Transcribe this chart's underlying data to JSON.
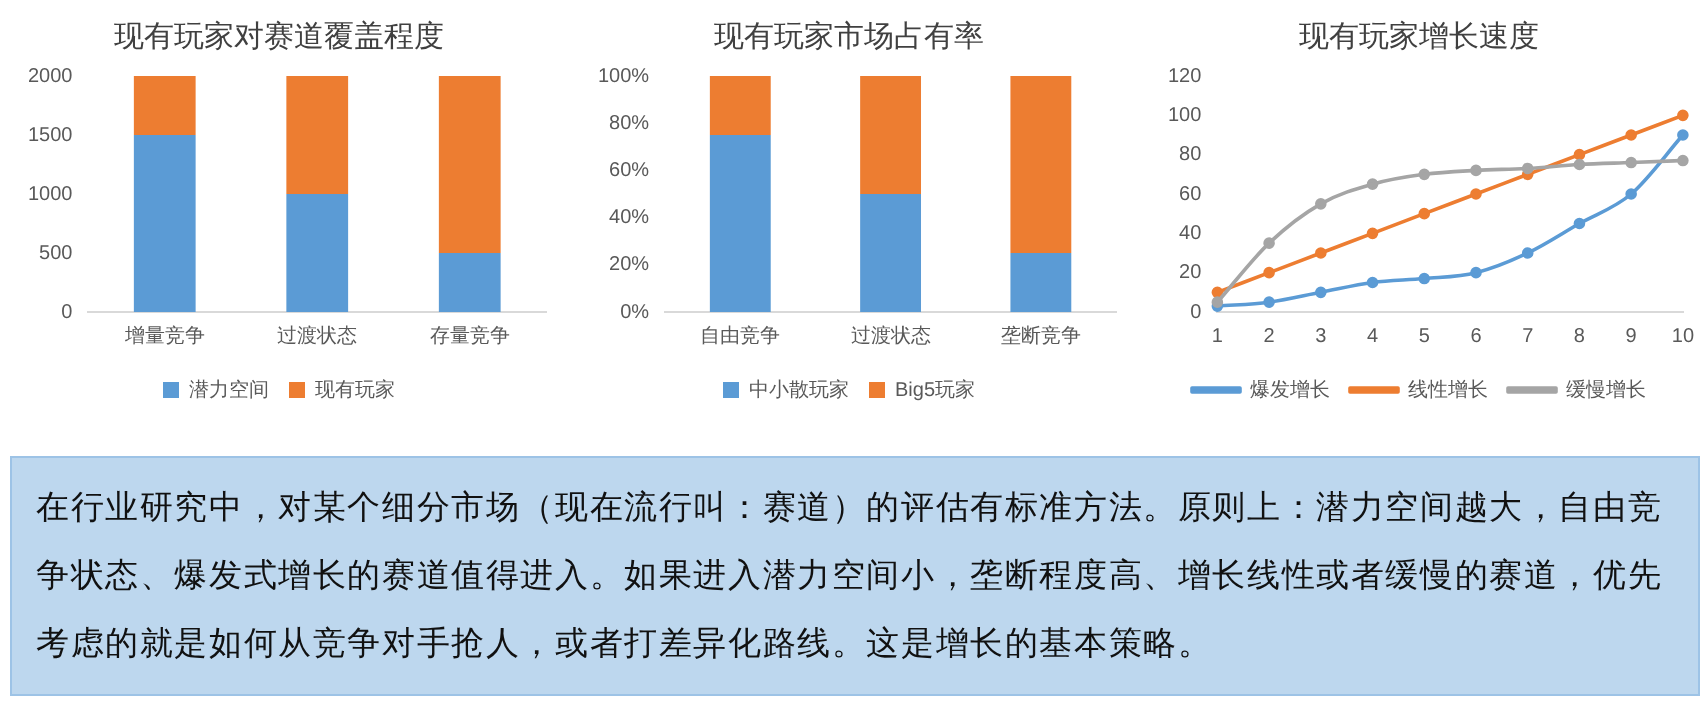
{
  "chart_data": [
    {
      "type": "bar",
      "title": "现有玩家对赛道覆盖程度",
      "categories": [
        "增量竞争",
        "过渡状态",
        "存量竞争"
      ],
      "stacked": true,
      "ylim": [
        0,
        2000
      ],
      "yticks": [
        0,
        500,
        1000,
        1500,
        2000
      ],
      "grid": false,
      "legend": "bottom",
      "series": [
        {
          "name": "潜力空间",
          "color": "#5b9bd5",
          "values": [
            1500,
            1000,
            500
          ]
        },
        {
          "name": "现有玩家",
          "color": "#ed7d31",
          "values": [
            500,
            1000,
            1500
          ]
        }
      ]
    },
    {
      "type": "bar",
      "title": "现有玩家市场占有率",
      "categories": [
        "自由竞争",
        "过渡状态",
        "垄断竞争"
      ],
      "stacked": true,
      "ylim": [
        0,
        100
      ],
      "yticks": [
        {
          "value": 0,
          "label": "0%"
        },
        {
          "value": 20,
          "label": "20%"
        },
        {
          "value": 40,
          "label": "40%"
        },
        {
          "value": 60,
          "label": "60%"
        },
        {
          "value": 80,
          "label": "80%"
        },
        {
          "value": 100,
          "label": "100%"
        }
      ],
      "grid": false,
      "legend": "bottom",
      "series": [
        {
          "name": "中小散玩家",
          "color": "#5b9bd5",
          "values": [
            75,
            50,
            25
          ]
        },
        {
          "name": "Big5玩家",
          "color": "#ed7d31",
          "values": [
            25,
            50,
            75
          ]
        }
      ]
    },
    {
      "type": "line",
      "title": "现有玩家增长速度",
      "categories": [
        "1",
        "2",
        "3",
        "4",
        "5",
        "6",
        "7",
        "8",
        "9",
        "10"
      ],
      "ylim": [
        0,
        120
      ],
      "yticks": [
        0,
        20,
        40,
        60,
        80,
        100,
        120
      ],
      "grid": false,
      "legend": "bottom",
      "marker": "circle",
      "line_style": "solid",
      "series": [
        {
          "name": "爆发增长",
          "color": "#5b9bd5",
          "values": [
            3,
            5,
            10,
            15,
            17,
            20,
            30,
            45,
            60,
            90
          ]
        },
        {
          "name": "线性增长",
          "color": "#ed7d31",
          "values": [
            10,
            20,
            30,
            40,
            50,
            60,
            70,
            80,
            90,
            100
          ]
        },
        {
          "name": "缓慢增长",
          "color": "#a5a5a5",
          "values": [
            5,
            35,
            55,
            65,
            70,
            72,
            73,
            75,
            76,
            77
          ]
        }
      ]
    },
    {
      "type": "other",
      "annotations": [
        "在行业研究中，对某个细分市场（现在流行叫：赛道）的评估有标准方法。原则上：潜力空间越大，自由竞争状态、爆发式增长的赛道值得进入。如果进入潜力空间小，垄断程度高、增长线性或者缓慢的赛道，优先考虑的就是如何从竞争对手抢人，或者打差异化路线。这是增长的基本策略。"
      ]
    }
  ]
}
